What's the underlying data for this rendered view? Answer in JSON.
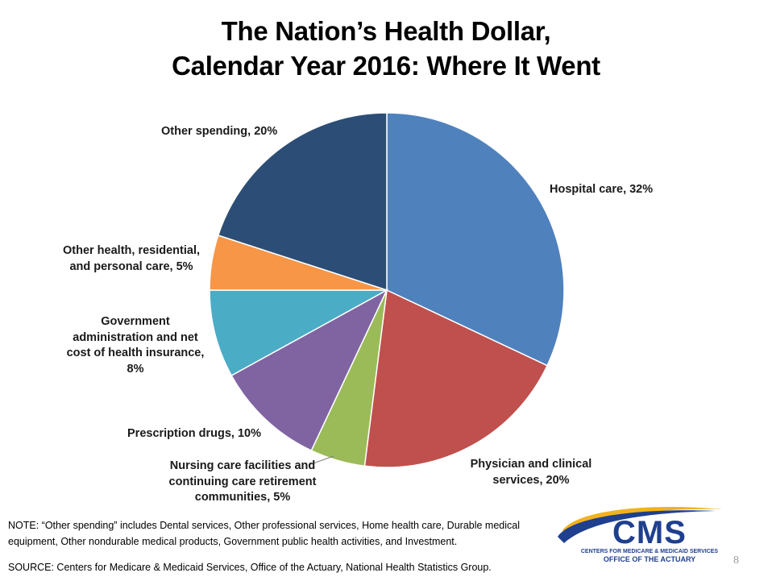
{
  "title": {
    "line1": "The Nation’s Health Dollar,",
    "line2": "Calendar Year 2016: Where It Went"
  },
  "chart_data": {
    "type": "pie",
    "unit": "%",
    "slices": [
      {
        "label": "Hospital care",
        "value": 32,
        "color": "#4f81bd"
      },
      {
        "label": "Physician and clinical services",
        "value": 20,
        "color": "#c0504d"
      },
      {
        "label": "Nursing care facilities and continuing care retirement communities",
        "value": 5,
        "color": "#9bbb59"
      },
      {
        "label": "Prescription drugs",
        "value": 10,
        "color": "#8064a2"
      },
      {
        "label": "Government administration and net cost of health insurance",
        "value": 8,
        "color": "#4bacc6"
      },
      {
        "label": "Other health, residential, and personal care",
        "value": 5,
        "color": "#f79646"
      },
      {
        "label": "Other spending",
        "value": 20,
        "color": "#2c4d75"
      }
    ],
    "labels": {
      "hospital": "Hospital care, 32%",
      "physician": [
        "Physician and clinical",
        "services, 20%"
      ],
      "nursing": [
        "Nursing care facilities and",
        "continuing care retirement",
        "communities, 5%"
      ],
      "prescription": "Prescription drugs, 10%",
      "government": [
        "Government",
        "administration and net",
        "cost of health insurance,",
        "8%"
      ],
      "other_health": [
        "Other health, residential,",
        "and personal care, 5%"
      ],
      "other_spending": "Other spending, 20%"
    }
  },
  "note": "NOTE:  “Other spending” includes Dental services, Other professional services, Home health care, Durable medical equipment, Other nondurable medical products, Government public health activities, and Investment.",
  "source": "SOURCE: Centers for Medicare & Medicaid Services, Office of the Actuary, National Health Statistics Group.",
  "logo": {
    "text": "CMS",
    "line1": "CENTERS FOR MEDICARE & MEDICAID SERVICES",
    "line2": "OFFICE OF THE ACTUARY",
    "blue": "#1f3f8f",
    "gold": "#f2b21c"
  },
  "page_number": "8"
}
